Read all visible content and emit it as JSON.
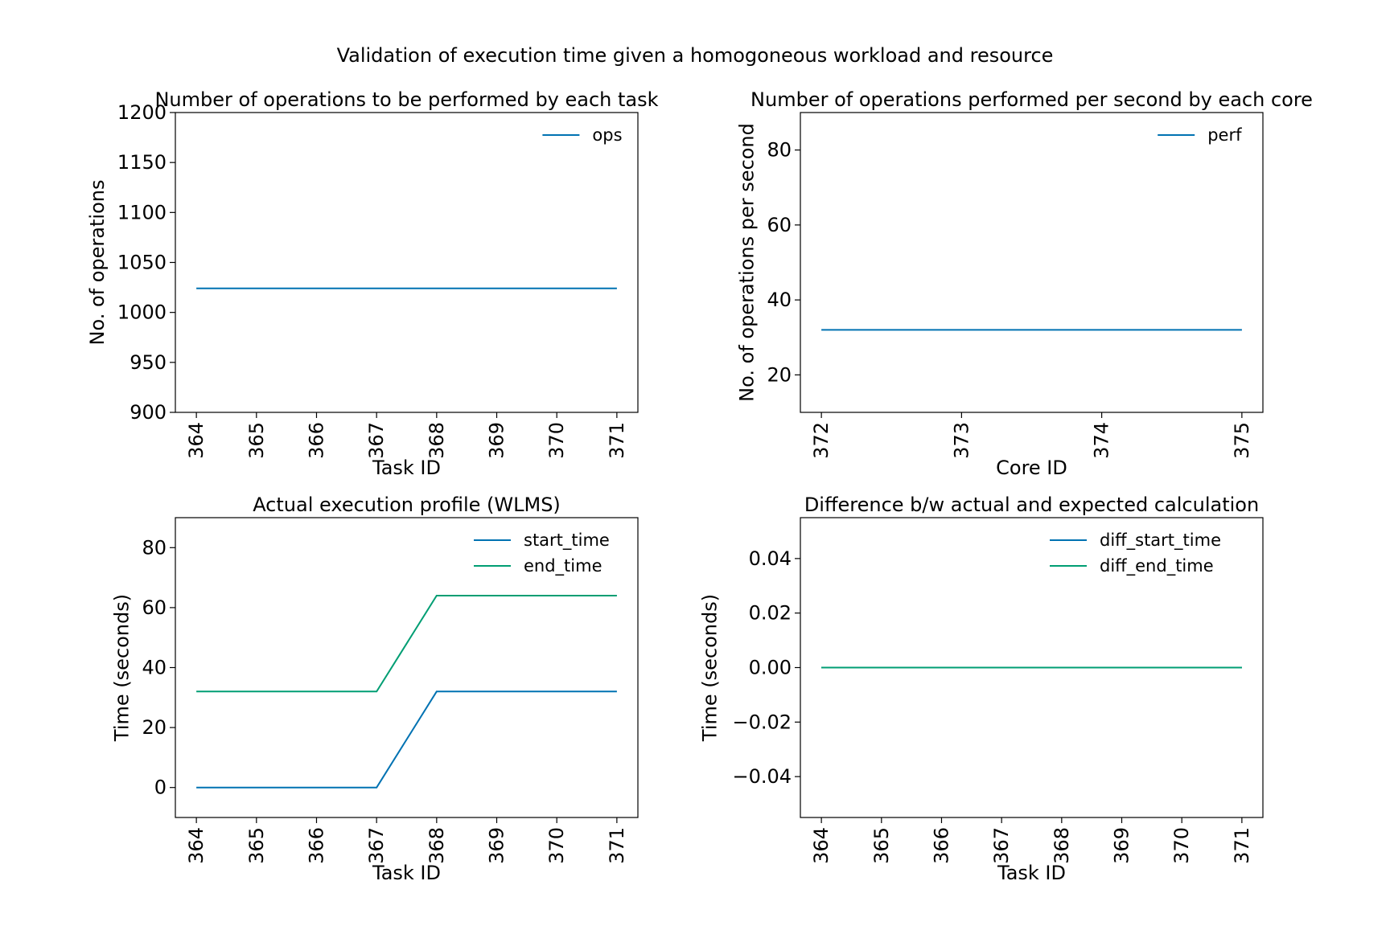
{
  "figure": {
    "suptitle": "Validation of execution time given a homogoneous workload and resource"
  },
  "chart_data": [
    {
      "type": "line",
      "title": "Number of operations to be performed by each task",
      "xlabel": "Task ID",
      "ylabel": "No. of operations",
      "x": [
        364,
        365,
        366,
        367,
        368,
        369,
        370,
        371
      ],
      "xlim": [
        363.65,
        371.35
      ],
      "ylim": [
        900,
        1200
      ],
      "yticks": [
        900,
        950,
        1000,
        1050,
        1100,
        1150,
        1200
      ],
      "ytick_labels": [
        "900",
        "950",
        "1000",
        "1050",
        "1100",
        "1150",
        "1200"
      ],
      "xtick_rotation": "vertical",
      "legend": "upper right",
      "series": [
        {
          "name": "ops",
          "color": "#0072B2",
          "values": [
            1024,
            1024,
            1024,
            1024,
            1024,
            1024,
            1024,
            1024
          ]
        }
      ]
    },
    {
      "type": "line",
      "title": "Number of operations performed per second by each core",
      "xlabel": "Core ID",
      "ylabel": "No. of operations per second",
      "x": [
        372,
        373,
        374,
        375
      ],
      "xlim": [
        371.85,
        375.15
      ],
      "ylim": [
        10,
        90
      ],
      "yticks": [
        20,
        40,
        60,
        80
      ],
      "ytick_labels": [
        "20",
        "40",
        "60",
        "80"
      ],
      "xtick_rotation": "vertical",
      "legend": "upper right",
      "series": [
        {
          "name": "perf",
          "color": "#0072B2",
          "values": [
            32,
            32,
            32,
            32
          ]
        }
      ]
    },
    {
      "type": "line",
      "title": "Actual execution profile (WLMS)",
      "xlabel": "Task ID",
      "ylabel": "Time (seconds)",
      "x": [
        364,
        365,
        366,
        367,
        368,
        369,
        370,
        371
      ],
      "xlim": [
        363.65,
        371.35
      ],
      "ylim": [
        -10,
        90
      ],
      "yticks": [
        0,
        20,
        40,
        60,
        80
      ],
      "ytick_labels": [
        "0",
        "20",
        "40",
        "60",
        "80"
      ],
      "xtick_rotation": "vertical",
      "legend": "upper right",
      "series": [
        {
          "name": "start_time",
          "color": "#0072B2",
          "values": [
            0,
            0,
            0,
            0,
            32,
            32,
            32,
            32
          ]
        },
        {
          "name": "end_time",
          "color": "#009E73",
          "values": [
            32,
            32,
            32,
            32,
            64,
            64,
            64,
            64
          ]
        }
      ]
    },
    {
      "type": "line",
      "title": "Difference b/w actual and expected calculation",
      "xlabel": "Task ID",
      "ylabel": "Time (seconds)",
      "x": [
        364,
        365,
        366,
        367,
        368,
        369,
        370,
        371
      ],
      "xlim": [
        363.65,
        371.35
      ],
      "ylim": [
        -0.055,
        0.055
      ],
      "yticks": [
        -0.04,
        -0.02,
        0,
        0.02,
        0.04
      ],
      "ytick_labels": [
        "−0.04",
        "−0.02",
        "0.00",
        "0.02",
        "0.04"
      ],
      "xtick_rotation": "vertical",
      "legend": "upper right",
      "series": [
        {
          "name": "diff_start_time",
          "color": "#0072B2",
          "values": [
            0,
            0,
            0,
            0,
            0,
            0,
            0,
            0
          ]
        },
        {
          "name": "diff_end_time",
          "color": "#009E73",
          "values": [
            0,
            0,
            0,
            0,
            0,
            0,
            0,
            0
          ]
        }
      ]
    }
  ]
}
